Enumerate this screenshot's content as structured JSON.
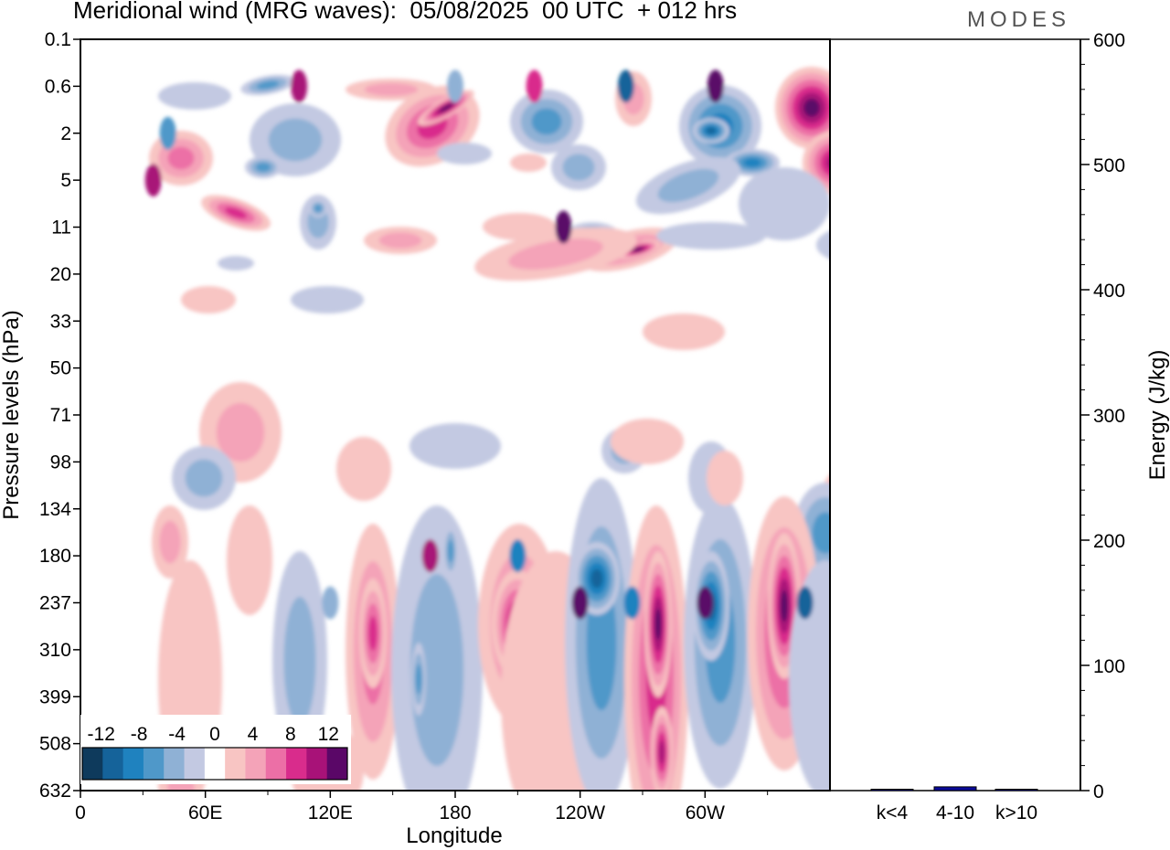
{
  "header": {
    "title": "Meridional wind (MRG waves):  05/08/2025  00 UTC  + 012 hrs",
    "brand": "MODES"
  },
  "chart_data": [
    {
      "type": "heatmap",
      "title": "Meridional wind (MRG waves):  05/08/2025  00 UTC  + 012 hrs",
      "xlabel": "Longitude",
      "ylabel": "Pressure levels (hPa)",
      "x_ticks": [
        "0",
        "60E",
        "120E",
        "180",
        "120W",
        "60W"
      ],
      "x_tick_values": [
        0,
        60,
        120,
        180,
        240,
        300
      ],
      "xlim": [
        0,
        360
      ],
      "y_ticks": [
        "0.1",
        "0.6",
        "2",
        "5",
        "11",
        "20",
        "33",
        "50",
        "71",
        "98",
        "134",
        "180",
        "237",
        "310",
        "399",
        "508",
        "632"
      ],
      "colorbar": {
        "labels": [
          "-12",
          "-8",
          "-4",
          "0",
          "4",
          "8",
          "12"
        ],
        "label_positions": [
          -12,
          -8,
          -4,
          0,
          4,
          8,
          12
        ],
        "levels": [
          -14,
          -12,
          -10,
          -8,
          -6,
          -4,
          -2,
          2,
          4,
          6,
          8,
          10,
          12,
          14
        ],
        "colors": [
          "#0e3a5c",
          "#15639a",
          "#1f82bf",
          "#4f98c9",
          "#8fb1d5",
          "#c3c9e2",
          "#ffffff",
          "#f8c5c3",
          "#f4a3b8",
          "#ec6fa6",
          "#d92c8c",
          "#a81278",
          "#5a0767"
        ],
        "position": "bottom-left"
      },
      "features": [
        {
          "lon": 180,
          "level": "0.6",
          "value": -6
        },
        {
          "lon": 218,
          "level": "0.6",
          "value": 8
        },
        {
          "lon": 305,
          "level": "0.6",
          "value": 14
        },
        {
          "lon": 262,
          "level": "0.6",
          "value": -12
        },
        {
          "lon": 105,
          "level": "0.6",
          "value": 10
        },
        {
          "lon": 42,
          "level": "2",
          "value": -8
        },
        {
          "lon": 35,
          "level": "5",
          "value": 10
        },
        {
          "lon": 232,
          "level": "11",
          "value": 12
        },
        {
          "lon": 120,
          "level": "237",
          "value": -6
        },
        {
          "lon": 168,
          "level": "180",
          "value": 10
        },
        {
          "lon": 210,
          "level": "180",
          "value": -10
        },
        {
          "lon": 240,
          "level": "237",
          "value": 14
        },
        {
          "lon": 265,
          "level": "237",
          "value": -10
        },
        {
          "lon": 300,
          "level": "237",
          "value": 12
        },
        {
          "lon": 348,
          "level": "237",
          "value": -12
        }
      ]
    },
    {
      "type": "bar",
      "title": "",
      "ylabel": "Energy (J/kg)",
      "categories": [
        "k<4",
        "4-10",
        "k>10"
      ],
      "values": [
        0.3,
        3,
        0.5
      ],
      "bar_color": "#0a0a9a",
      "ylim": [
        0,
        600
      ],
      "y_ticks": [
        "0",
        "100",
        "200",
        "300",
        "400",
        "500",
        "600"
      ],
      "y_tick_values": [
        0,
        100,
        200,
        300,
        400,
        500,
        600
      ]
    }
  ]
}
